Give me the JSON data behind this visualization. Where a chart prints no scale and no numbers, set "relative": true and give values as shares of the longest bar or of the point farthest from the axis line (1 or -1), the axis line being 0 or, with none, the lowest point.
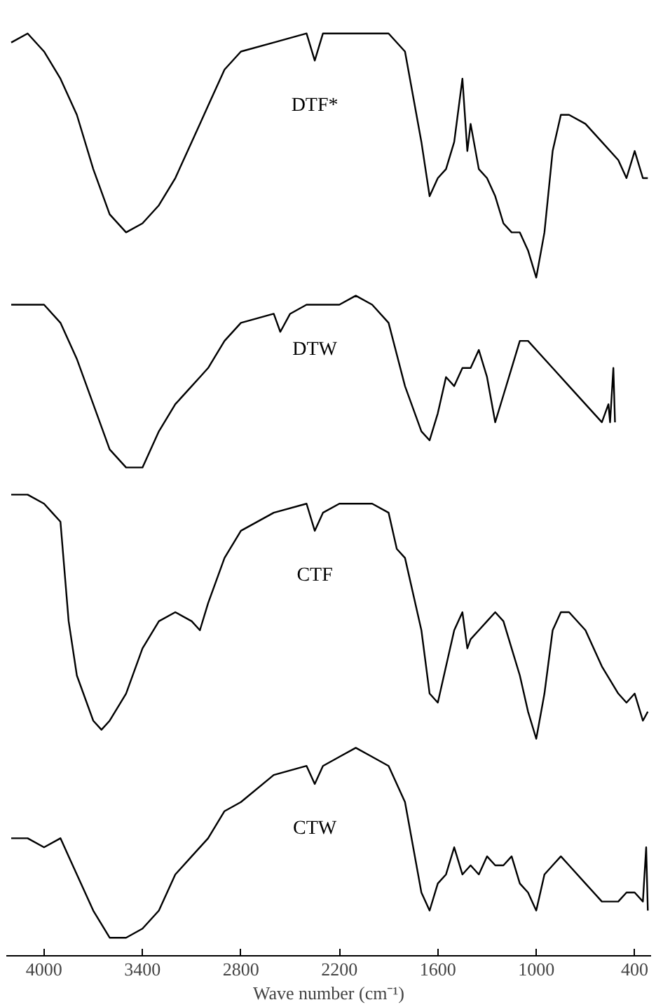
{
  "chart_data": {
    "type": "line",
    "relative": true,
    "xlabel": "Wave number (cm⁻¹)",
    "xlim": [
      4230,
      300
    ],
    "xticks": [
      4000,
      3400,
      2800,
      2200,
      1600,
      1000,
      400
    ],
    "grid": false,
    "marker": "none",
    "line_style": "solid",
    "series": [
      {
        "name": "DTF*",
        "color": "#000000",
        "x": [
          4200,
          4100,
          4000,
          3900,
          3800,
          3700,
          3600,
          3500,
          3400,
          3300,
          3200,
          3100,
          3050,
          3000,
          2900,
          2800,
          2600,
          2400,
          2350,
          2300,
          2200,
          2000,
          1900,
          1800,
          1700,
          1650,
          1600,
          1550,
          1500,
          1450,
          1420,
          1400,
          1350,
          1300,
          1250,
          1200,
          1150,
          1100,
          1050,
          1000,
          950,
          900,
          850,
          800,
          700,
          600,
          500,
          450,
          400,
          350,
          320
        ],
        "values": [
          0.99,
          1.0,
          0.98,
          0.95,
          0.91,
          0.85,
          0.8,
          0.78,
          0.79,
          0.81,
          0.84,
          0.88,
          0.9,
          0.92,
          0.96,
          0.98,
          0.99,
          1.0,
          0.97,
          1.0,
          1.0,
          1.0,
          1.0,
          0.98,
          0.88,
          0.82,
          0.84,
          0.85,
          0.88,
          0.95,
          0.87,
          0.9,
          0.85,
          0.84,
          0.82,
          0.79,
          0.78,
          0.78,
          0.76,
          0.73,
          0.78,
          0.87,
          0.91,
          0.91,
          0.9,
          0.88,
          0.86,
          0.84,
          0.87,
          0.84,
          0.84
        ]
      },
      {
        "name": "DTW",
        "color": "#000000",
        "x": [
          4200,
          4100,
          4000,
          3900,
          3800,
          3700,
          3600,
          3500,
          3400,
          3300,
          3200,
          3100,
          3050,
          3000,
          2900,
          2800,
          2600,
          2560,
          2500,
          2400,
          2200,
          2100,
          2000,
          1900,
          1800,
          1700,
          1650,
          1600,
          1550,
          1500,
          1450,
          1400,
          1350,
          1300,
          1250,
          1200,
          1150,
          1100,
          1050,
          1000,
          900,
          800,
          700,
          600,
          560,
          550,
          530,
          520
        ],
        "values": [
          0.7,
          0.7,
          0.7,
          0.68,
          0.64,
          0.59,
          0.54,
          0.52,
          0.52,
          0.56,
          0.59,
          0.61,
          0.62,
          0.63,
          0.66,
          0.68,
          0.69,
          0.67,
          0.69,
          0.7,
          0.7,
          0.71,
          0.7,
          0.68,
          0.61,
          0.56,
          0.55,
          0.58,
          0.62,
          0.61,
          0.63,
          0.63,
          0.65,
          0.62,
          0.57,
          0.6,
          0.63,
          0.66,
          0.66,
          0.65,
          0.63,
          0.61,
          0.59,
          0.57,
          0.59,
          0.57,
          0.63,
          0.57
        ]
      },
      {
        "name": "CTF",
        "color": "#000000",
        "x": [
          4200,
          4100,
          4000,
          3950,
          3900,
          3850,
          3800,
          3700,
          3650,
          3600,
          3500,
          3400,
          3300,
          3200,
          3100,
          3050,
          3000,
          2900,
          2800,
          2600,
          2400,
          2350,
          2300,
          2200,
          2000,
          1900,
          1850,
          1800,
          1700,
          1650,
          1600,
          1550,
          1500,
          1450,
          1420,
          1400,
          1350,
          1300,
          1250,
          1200,
          1150,
          1100,
          1050,
          1000,
          950,
          900,
          850,
          800,
          700,
          600,
          500,
          450,
          400,
          350,
          320
        ],
        "values": [
          0.49,
          0.49,
          0.48,
          0.47,
          0.46,
          0.35,
          0.29,
          0.24,
          0.23,
          0.24,
          0.27,
          0.32,
          0.35,
          0.36,
          0.35,
          0.34,
          0.37,
          0.42,
          0.45,
          0.47,
          0.48,
          0.45,
          0.47,
          0.48,
          0.48,
          0.47,
          0.43,
          0.42,
          0.34,
          0.27,
          0.26,
          0.3,
          0.34,
          0.36,
          0.32,
          0.33,
          0.34,
          0.35,
          0.36,
          0.35,
          0.32,
          0.29,
          0.25,
          0.22,
          0.27,
          0.34,
          0.36,
          0.36,
          0.34,
          0.3,
          0.27,
          0.26,
          0.27,
          0.24,
          0.25
        ]
      },
      {
        "name": "CTW",
        "color": "#000000",
        "x": [
          4200,
          4100,
          4000,
          3900,
          3850,
          3800,
          3700,
          3600,
          3500,
          3400,
          3300,
          3200,
          3100,
          3000,
          2900,
          2800,
          2600,
          2400,
          2350,
          2300,
          2200,
          2100,
          2000,
          1900,
          1800,
          1700,
          1650,
          1600,
          1550,
          1500,
          1450,
          1400,
          1350,
          1300,
          1250,
          1200,
          1150,
          1100,
          1050,
          1000,
          950,
          900,
          850,
          800,
          700,
          600,
          500,
          450,
          400,
          350,
          330,
          320
        ],
        "values": [
          0.11,
          0.11,
          0.1,
          0.11,
          0.09,
          0.07,
          0.03,
          0.0,
          0.0,
          0.01,
          0.03,
          0.07,
          0.09,
          0.11,
          0.14,
          0.15,
          0.18,
          0.19,
          0.17,
          0.19,
          0.2,
          0.21,
          0.2,
          0.19,
          0.15,
          0.05,
          0.03,
          0.06,
          0.07,
          0.1,
          0.07,
          0.08,
          0.07,
          0.09,
          0.08,
          0.08,
          0.09,
          0.06,
          0.05,
          0.03,
          0.07,
          0.08,
          0.09,
          0.08,
          0.06,
          0.04,
          0.04,
          0.05,
          0.05,
          0.04,
          0.1,
          0.03
        ]
      }
    ]
  }
}
